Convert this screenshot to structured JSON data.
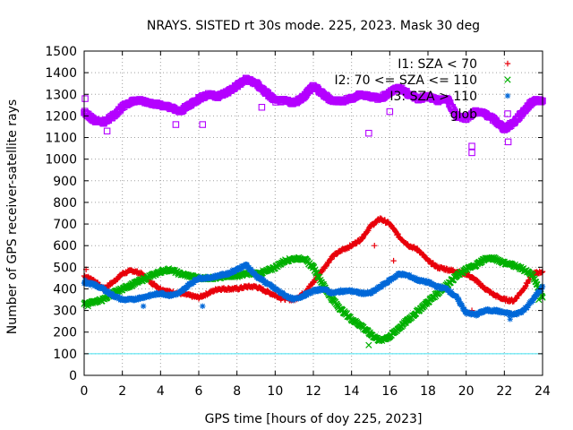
{
  "chart_data": {
    "type": "scatter",
    "title": "NRAYS. SISTED rt 30s mode. 225, 2023. Mask 30 deg",
    "xlabel": "GPS time [hours of doy 225, 2023]",
    "ylabel": "Number of GPS receiver-satellite rays",
    "xlim": [
      0,
      24
    ],
    "ylim": [
      0,
      1500
    ],
    "xticks": [
      "0",
      "2",
      "4",
      "6",
      "8",
      "10",
      "12",
      "14",
      "16",
      "18",
      "20",
      "22",
      "24"
    ],
    "yticks": [
      "0",
      "100",
      "200",
      "300",
      "400",
      "500",
      "600",
      "700",
      "800",
      "900",
      "1000",
      "1100",
      "1200",
      "1300",
      "1400",
      "1500"
    ],
    "grid": true,
    "legend_position": "top-right",
    "threshold_line": 100,
    "colors": {
      "I1": "#e8000b",
      "I2": "#00b000",
      "I3": "#0068d8",
      "glob": "#b400ff",
      "threshold": "#40e0f0",
      "grid": "#a0a0a0",
      "axis": "#000000"
    },
    "series": [
      {
        "name": "I1: SZA < 70",
        "legend_text": "I1: SZA < 70",
        "marker": "+",
        "x": [
          0,
          0.5,
          1,
          1.5,
          2,
          2.5,
          3,
          3.5,
          4,
          4.5,
          5,
          5.5,
          6,
          6.5,
          7,
          7.5,
          8,
          8.5,
          9,
          9.5,
          10,
          10.5,
          11,
          11.5,
          12,
          12.5,
          13,
          13.5,
          14,
          14.5,
          15,
          15.5,
          16,
          16.5,
          17,
          17.5,
          18,
          18.5,
          19,
          19.5,
          20,
          20.5,
          21,
          21.5,
          22,
          22.5,
          23,
          23.5,
          24
        ],
        "values": [
          460,
          440,
          400,
          430,
          470,
          485,
          470,
          430,
          400,
          385,
          380,
          370,
          360,
          380,
          400,
          400,
          400,
          410,
          410,
          390,
          370,
          355,
          350,
          380,
          430,
          490,
          550,
          580,
          600,
          630,
          690,
          725,
          700,
          640,
          600,
          580,
          530,
          500,
          490,
          480,
          470,
          440,
          400,
          370,
          350,
          345,
          400,
          470,
          480
        ],
        "outliers": [
          [
            0.1,
            490
          ],
          [
            15.2,
            600
          ],
          [
            16.2,
            530
          ],
          [
            20.3,
            300
          ],
          [
            10.3,
            350
          ]
        ]
      },
      {
        "name": "I2: 70 <= SZA <= 110",
        "legend_text": "I2: 70 <= SZA <= 110",
        "marker": "x",
        "x": [
          0,
          0.5,
          1,
          1.5,
          2,
          2.5,
          3,
          3.5,
          4,
          4.5,
          5,
          5.5,
          6,
          6.5,
          7,
          7.5,
          8,
          8.5,
          9,
          9.5,
          10,
          10.5,
          11,
          11.5,
          12,
          12.5,
          13,
          13.5,
          14,
          14.5,
          15,
          15.5,
          16,
          16.5,
          17,
          17.5,
          18,
          18.5,
          19,
          19.5,
          20,
          20.5,
          21,
          21.5,
          22,
          22.5,
          23,
          23.5,
          24
        ],
        "values": [
          330,
          340,
          350,
          380,
          400,
          420,
          440,
          460,
          480,
          490,
          470,
          460,
          450,
          450,
          450,
          460,
          460,
          470,
          470,
          480,
          500,
          530,
          540,
          540,
          500,
          420,
          350,
          300,
          260,
          230,
          190,
          160,
          180,
          220,
          260,
          300,
          340,
          380,
          420,
          460,
          490,
          510,
          540,
          540,
          520,
          510,
          490,
          460,
          360
        ],
        "outliers": [
          [
            0.2,
            320
          ],
          [
            14.9,
            140
          ],
          [
            23.8,
            350
          ]
        ]
      },
      {
        "name": "I3: SZA > 110",
        "legend_text": "I3: SZA > 110",
        "marker": "*",
        "x": [
          0,
          0.5,
          1,
          1.5,
          2,
          2.5,
          3,
          3.5,
          4,
          4.5,
          5,
          5.5,
          6,
          6.5,
          7,
          7.5,
          8,
          8.5,
          9,
          9.5,
          10,
          10.5,
          11,
          11.5,
          12,
          12.5,
          13,
          13.5,
          14,
          14.5,
          15,
          15.5,
          16,
          16.5,
          17,
          17.5,
          18,
          18.5,
          19,
          19.5,
          20,
          20.5,
          21,
          21.5,
          22,
          22.5,
          23,
          23.5,
          24
        ],
        "values": [
          430,
          420,
          400,
          370,
          350,
          350,
          360,
          370,
          380,
          370,
          380,
          420,
          450,
          450,
          460,
          470,
          490,
          510,
          460,
          430,
          400,
          370,
          350,
          370,
          390,
          400,
          380,
          390,
          390,
          380,
          380,
          410,
          440,
          470,
          460,
          440,
          430,
          410,
          400,
          360,
          290,
          280,
          300,
          300,
          290,
          280,
          300,
          350,
          410
        ],
        "outliers": [
          [
            3.1,
            320
          ],
          [
            6.2,
            320
          ],
          [
            22.3,
            260
          ],
          [
            0.05,
            440
          ]
        ]
      },
      {
        "name": "glob",
        "legend_text": "glob",
        "marker": "square",
        "x": [
          0,
          0.5,
          1,
          1.5,
          2,
          2.5,
          3,
          3.5,
          4,
          4.5,
          5,
          5.5,
          6,
          6.5,
          7,
          7.5,
          8,
          8.5,
          9,
          9.5,
          10,
          10.5,
          11,
          11.5,
          12,
          12.5,
          13,
          13.5,
          14,
          14.5,
          15,
          15.5,
          16,
          16.5,
          17,
          17.5,
          18,
          18.5,
          19,
          19.5,
          20,
          20.5,
          21,
          21.5,
          22,
          22.5,
          23,
          23.5,
          24
        ],
        "values": [
          1220,
          1180,
          1170,
          1200,
          1240,
          1270,
          1270,
          1260,
          1250,
          1240,
          1220,
          1250,
          1280,
          1300,
          1290,
          1310,
          1340,
          1370,
          1350,
          1310,
          1270,
          1270,
          1260,
          1290,
          1340,
          1300,
          1270,
          1270,
          1280,
          1300,
          1290,
          1280,
          1310,
          1330,
          1300,
          1280,
          1290,
          1270,
          1280,
          1200,
          1190,
          1220,
          1210,
          1180,
          1140,
          1170,
          1220,
          1270,
          1270
        ],
        "outliers": [
          [
            0.05,
            1280
          ],
          [
            1.2,
            1130
          ],
          [
            6.2,
            1160
          ],
          [
            14.9,
            1120
          ],
          [
            16.0,
            1220
          ],
          [
            20.3,
            1060
          ],
          [
            20.3,
            1030
          ],
          [
            22.2,
            1080
          ],
          [
            4.8,
            1160
          ],
          [
            9.3,
            1240
          ]
        ]
      }
    ]
  }
}
